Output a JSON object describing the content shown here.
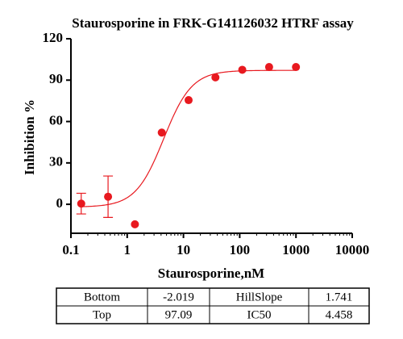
{
  "chart_data": {
    "type": "scatter",
    "title": "Staurosporine in FRK-G141126032 HTRF assay",
    "x_label": "Staurosporine,nM",
    "y_label": "Inhibition %",
    "x": [
      0.1524,
      0.4572,
      1.372,
      4.115,
      12.35,
      37.04,
      111.1,
      333.3,
      1000
    ],
    "values": [
      0.5,
      5.5,
      -14.5,
      52,
      75.5,
      92,
      97.5,
      99.5,
      99.5
    ],
    "errors": [
      7.5,
      15,
      null,
      null,
      null,
      null,
      null,
      null,
      null
    ],
    "color": "#e8191f",
    "xscale": "log",
    "xlim": [
      0.1,
      10000
    ],
    "xticks": [
      0.1,
      1,
      10,
      100,
      1000,
      10000
    ],
    "ylim": [
      -21,
      120
    ],
    "yticks": [
      0,
      30,
      60,
      90,
      120
    ],
    "fit": [
      {
        "name": "Bottom",
        "value": -2.019
      },
      {
        "name": "Top",
        "value": 97.09
      },
      {
        "name": "HillSlope",
        "value": 1.741
      },
      {
        "name": "IC50",
        "value": 4.458
      }
    ]
  }
}
